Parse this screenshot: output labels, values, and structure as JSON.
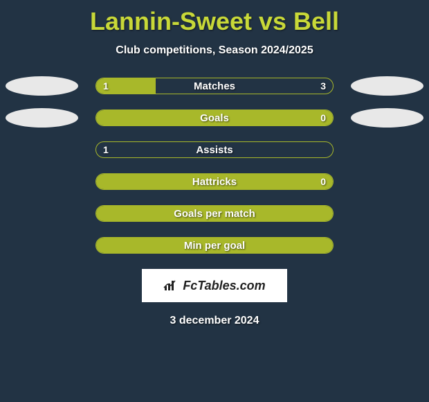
{
  "title": "Lannin-Sweet vs Bell",
  "subtitle": "Club competitions, Season 2024/2025",
  "colors": {
    "background": "#223344",
    "title_color": "#c8d838",
    "text_color": "#ffffff",
    "bar_fill": "#a8b82a",
    "bar_border": "#a8b82a",
    "ellipse_color": "#e8e8e8",
    "logo_bg": "#ffffff"
  },
  "rows": [
    {
      "label": "Matches",
      "left_value": "1",
      "right_value": "3",
      "left_fill_pct": 25,
      "full_fill": false,
      "show_ellipses": true,
      "show_left_value": true,
      "show_right_value": true
    },
    {
      "label": "Goals",
      "left_value": "",
      "right_value": "0",
      "left_fill_pct": 100,
      "full_fill": true,
      "show_ellipses": true,
      "show_left_value": false,
      "show_right_value": true
    },
    {
      "label": "Assists",
      "left_value": "1",
      "right_value": "",
      "left_fill_pct": 0,
      "full_fill": false,
      "show_ellipses": false,
      "show_left_value": true,
      "show_right_value": false
    },
    {
      "label": "Hattricks",
      "left_value": "",
      "right_value": "0",
      "left_fill_pct": 100,
      "full_fill": true,
      "show_ellipses": false,
      "show_left_value": false,
      "show_right_value": true
    },
    {
      "label": "Goals per match",
      "left_value": "",
      "right_value": "",
      "left_fill_pct": 100,
      "full_fill": true,
      "show_ellipses": false,
      "show_left_value": false,
      "show_right_value": false
    },
    {
      "label": "Min per goal",
      "left_value": "",
      "right_value": "",
      "left_fill_pct": 100,
      "full_fill": true,
      "show_ellipses": false,
      "show_left_value": false,
      "show_right_value": false
    }
  ],
  "logo_text": "FcTables.com",
  "date_text": "3 december 2024",
  "typography": {
    "title_fontsize": 36,
    "subtitle_fontsize": 16,
    "bar_label_fontsize": 15,
    "bar_value_fontsize": 14,
    "date_fontsize": 16
  }
}
